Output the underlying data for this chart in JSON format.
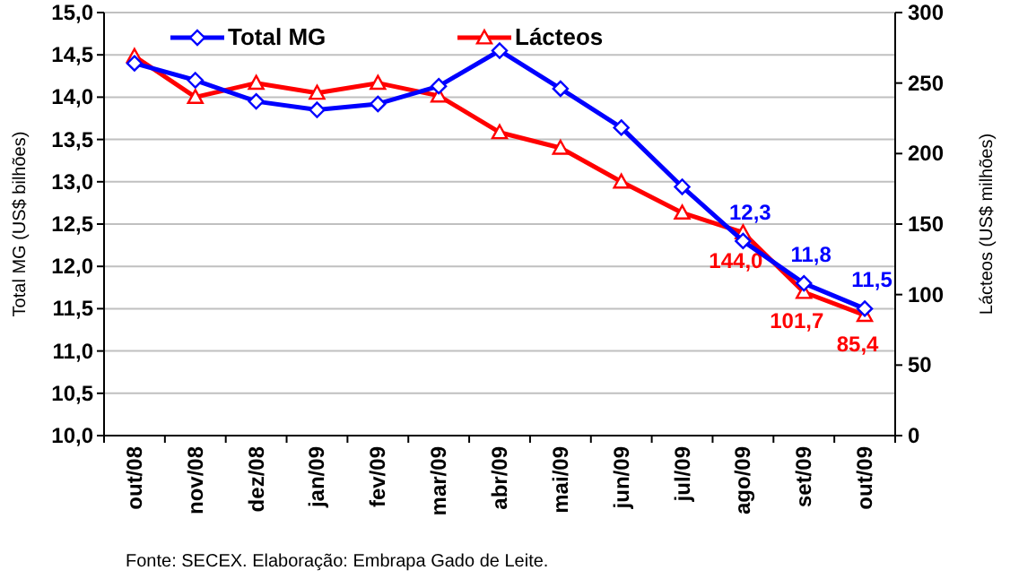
{
  "chart_data": {
    "type": "line",
    "xlabel": null,
    "ylabel": "Total MG (US$ bilhões)",
    "y2label": "Lácteos (US$ milhões)",
    "categories": [
      "out/08",
      "nov/08",
      "dez/08",
      "jan/09",
      "fev/09",
      "mar/09",
      "abr/09",
      "mai/09",
      "jun/09",
      "jul/09",
      "ago/09",
      "set/09",
      "out/09"
    ],
    "series": [
      {
        "name": "Total MG",
        "color": "#0000ff",
        "marker": "diamond",
        "values": [
          14.4,
          14.2,
          13.95,
          13.85,
          13.92,
          14.13,
          14.55,
          14.1,
          13.64,
          12.94,
          12.3,
          11.8,
          11.5
        ],
        "value_labels": [
          null,
          null,
          null,
          null,
          null,
          null,
          null,
          null,
          null,
          null,
          "12,3",
          "11,8",
          "11,5"
        ]
      },
      {
        "name": "Lácteos",
        "color": "#ff0000",
        "marker": "triangle",
        "axis": "y2",
        "values": [
          269,
          240,
          250,
          243,
          250,
          241,
          215,
          204,
          180,
          158,
          144.0,
          101.7,
          85.4
        ],
        "value_labels": [
          null,
          null,
          null,
          null,
          null,
          null,
          null,
          null,
          null,
          null,
          "144,0",
          "101,7",
          "85,4"
        ]
      }
    ],
    "ylim": [
      10,
      15
    ],
    "yticks": [
      {
        "value": 10,
        "label": "10,0"
      },
      {
        "value": 10.5,
        "label": "10,5"
      },
      {
        "value": 11,
        "label": "11,0"
      },
      {
        "value": 11.5,
        "label": "11,5"
      },
      {
        "value": 12,
        "label": "12,0"
      },
      {
        "value": 12.5,
        "label": "12,5"
      },
      {
        "value": 13,
        "label": "13,0"
      },
      {
        "value": 13.5,
        "label": "13,5"
      },
      {
        "value": 14,
        "label": "14,0"
      },
      {
        "value": 14.5,
        "label": "14,5"
      },
      {
        "value": 15,
        "label": "15,0"
      }
    ],
    "y2lim": [
      0,
      300
    ],
    "y2ticks": [
      0,
      50,
      100,
      150,
      200,
      250,
      300
    ],
    "grid": "y",
    "legend": "top",
    "line_style": "solid",
    "annotations": [
      "Fonte: SECEX. Elaboração: Embrapa Gado de Leite."
    ]
  }
}
